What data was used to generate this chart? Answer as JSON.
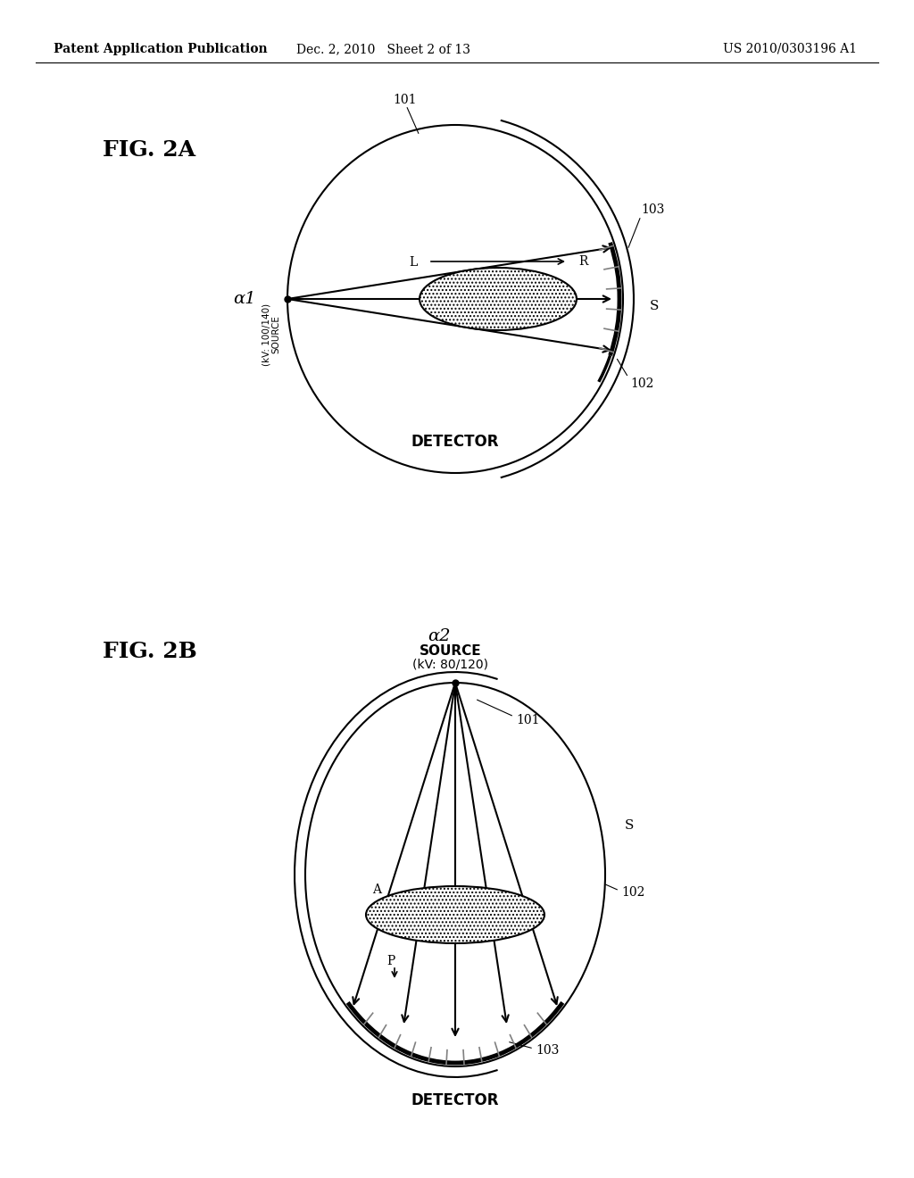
{
  "bg_color": "#ffffff",
  "header_left": "Patent Application Publication",
  "header_mid": "Dec. 2, 2010   Sheet 2 of 13",
  "header_right": "US 2010/0303196 A1",
  "fig2a_label": "FIG. 2A",
  "fig2b_label": "FIG. 2B",
  "fig2a_alpha_label": "α1",
  "fig2b_alpha_label": "α2",
  "detector_label": "DETECTOR",
  "label_101": "101",
  "label_102": "102",
  "label_103": "103",
  "label_S": "S",
  "label_L": "L",
  "label_R": "R",
  "label_A": "A",
  "label_P": "P",
  "line_color": "#000000",
  "font_size_header": 10,
  "font_size_fig": 18,
  "font_size_label": 10,
  "font_size_alpha": 13
}
